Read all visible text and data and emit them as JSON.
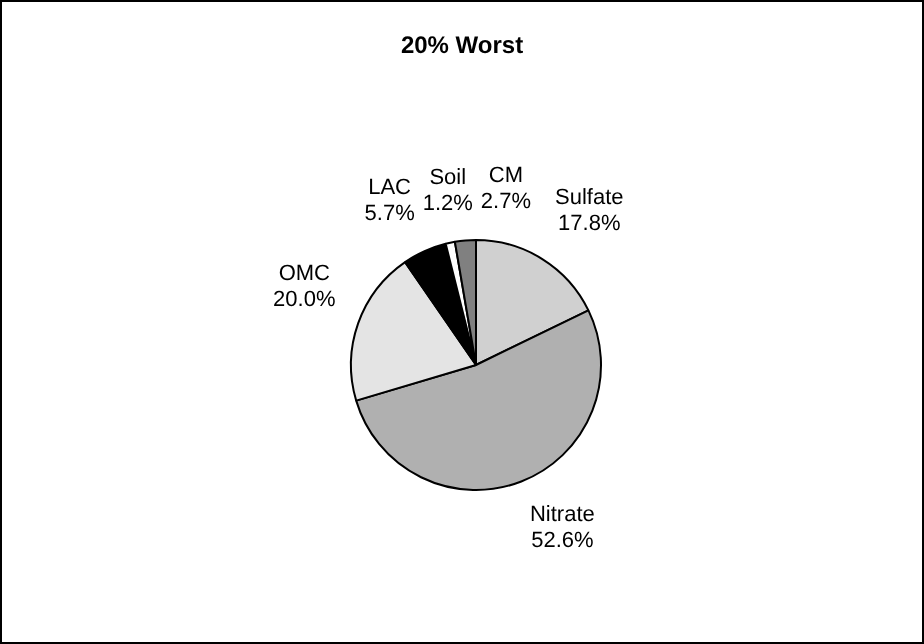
{
  "chart_data": {
    "type": "pie",
    "title": "20% Worst",
    "categories": [
      "Sulfate",
      "Nitrate",
      "OMC",
      "LAC",
      "Soil",
      "CM"
    ],
    "values": [
      17.8,
      52.6,
      20.0,
      5.7,
      1.2,
      2.7
    ],
    "value_labels": [
      "17.8%",
      "52.6%",
      "20.0%",
      "5.7%",
      "1.2%",
      "2.7%"
    ],
    "colors": [
      "#d0d0d0",
      "#b0b0b0",
      "#e4e4e4",
      "#000000",
      "#ffffff",
      "#808080"
    ],
    "legend": false
  }
}
